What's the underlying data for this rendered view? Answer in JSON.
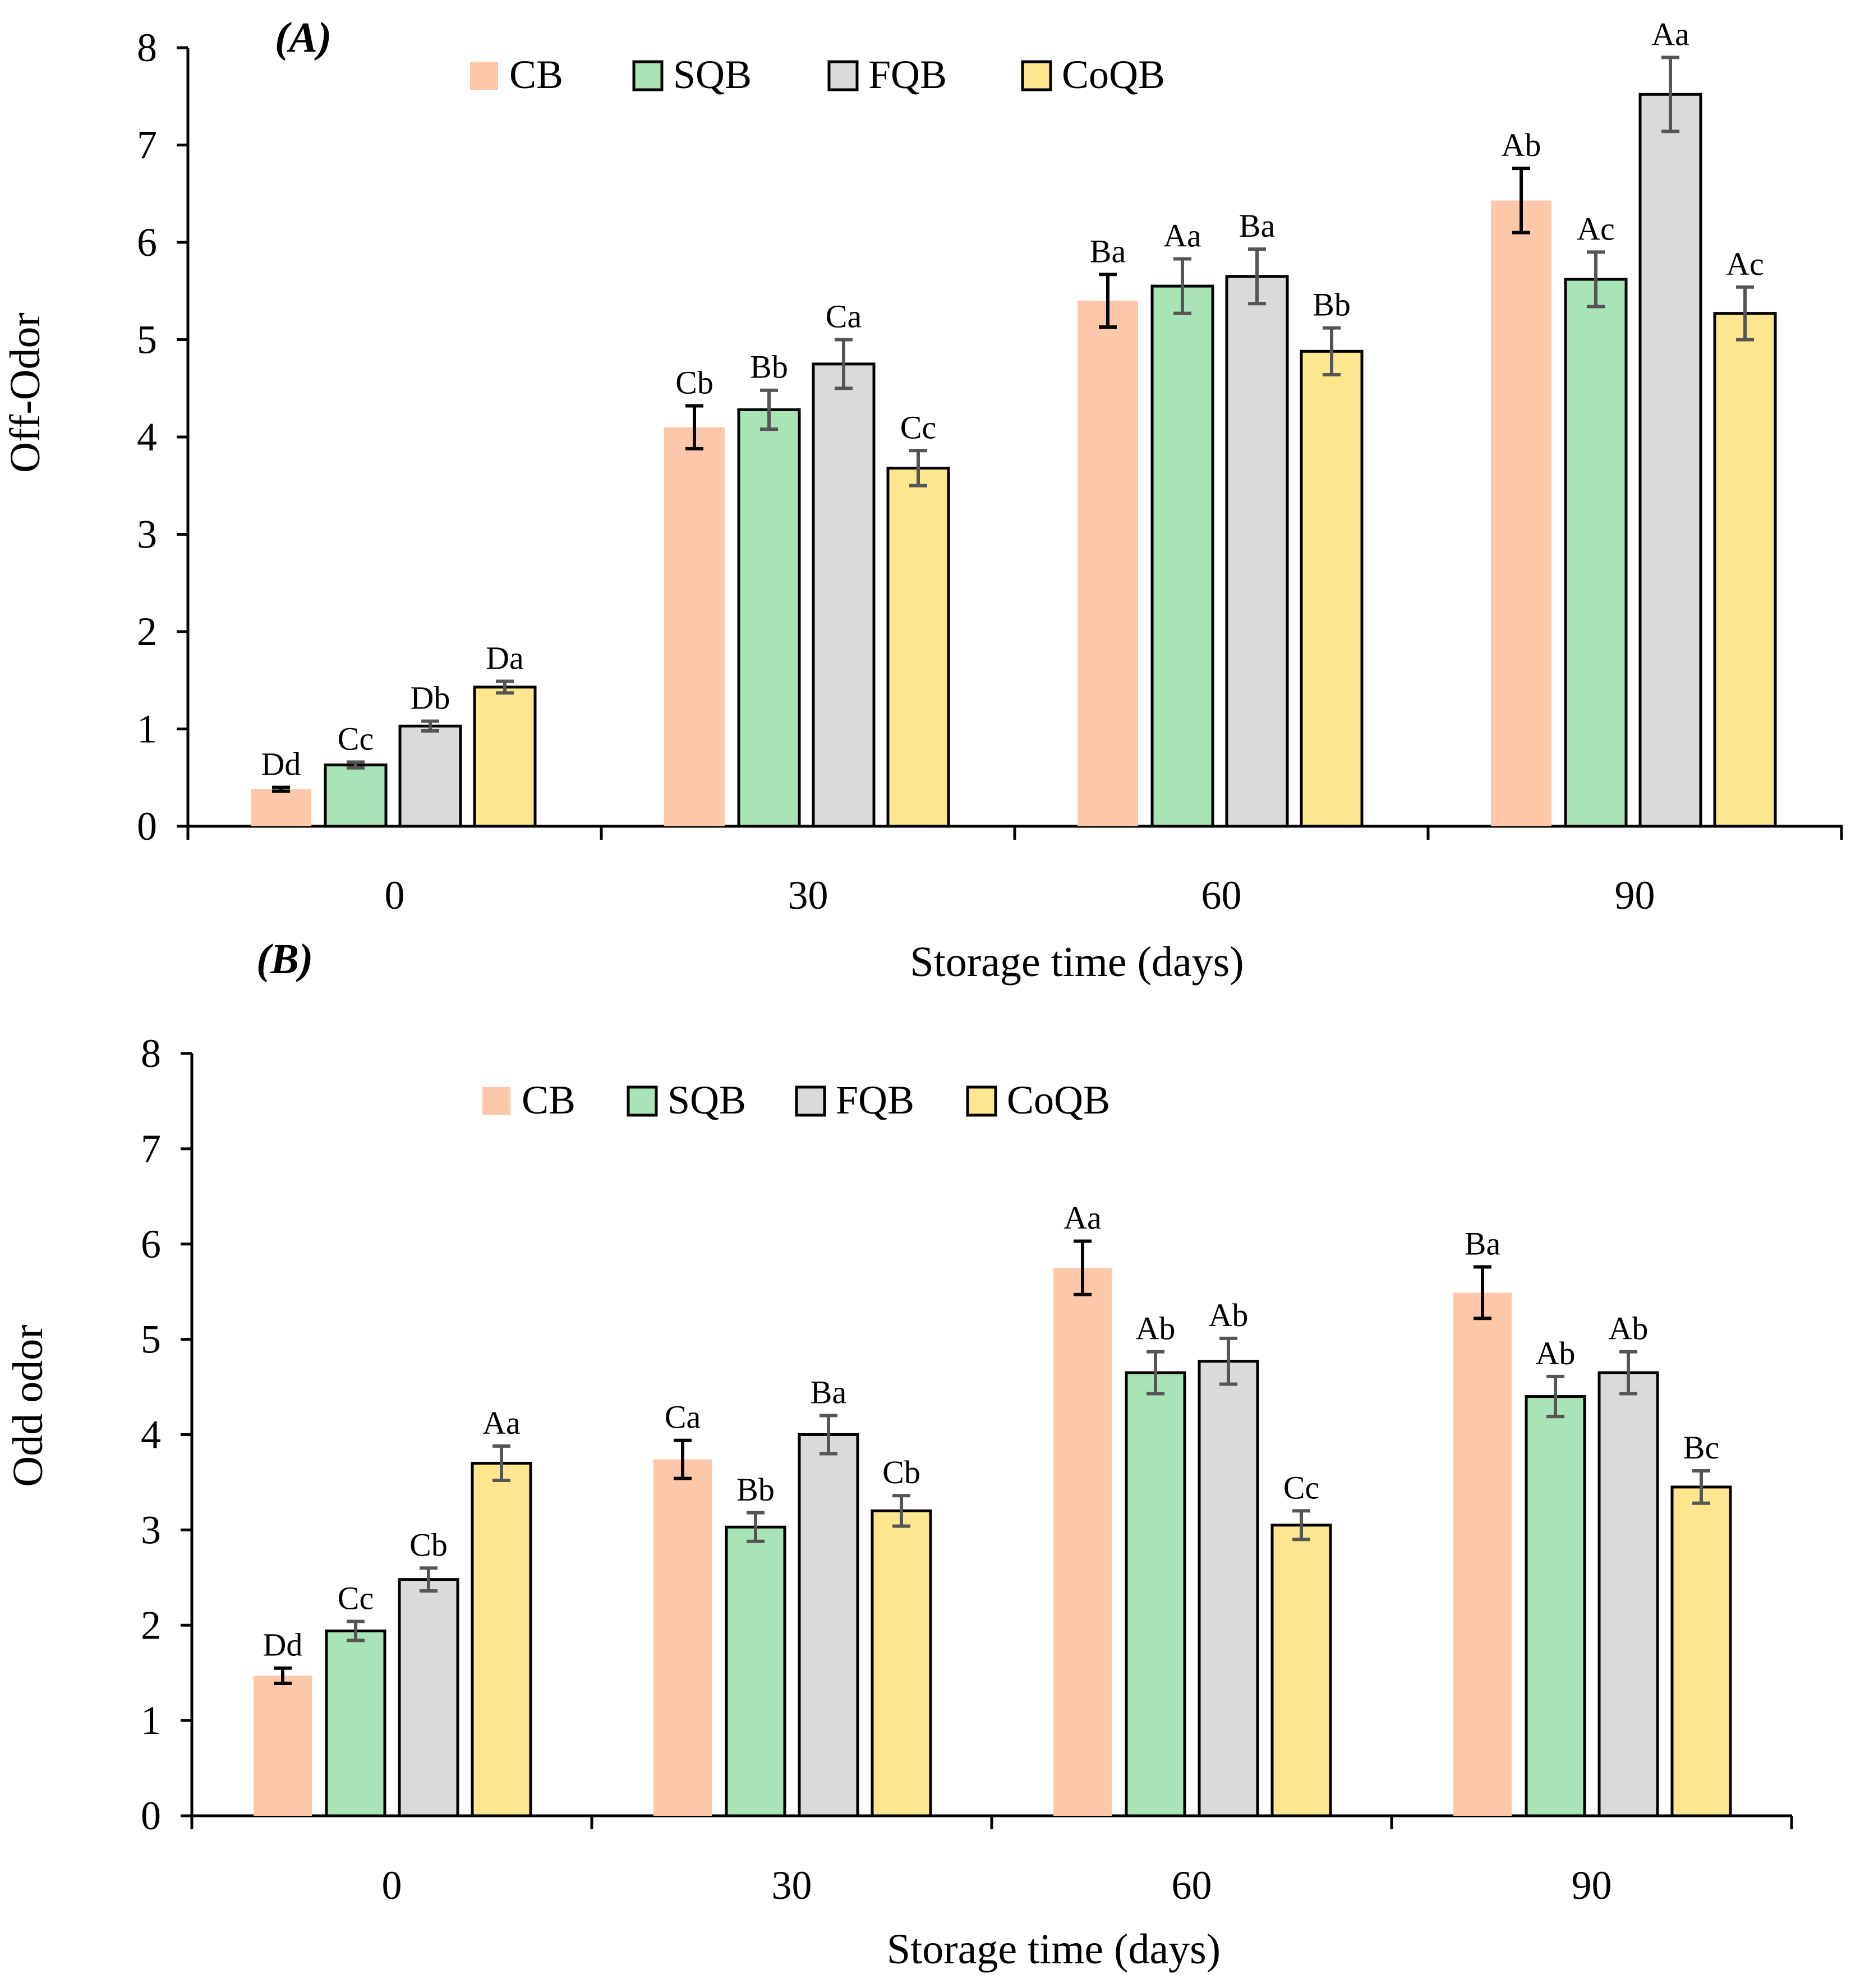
{
  "figure": {
    "panels": [
      "A",
      "B"
    ]
  },
  "colors": {
    "CB": "#fcc8a9",
    "SQB": "#a8e4b5",
    "FQB": "#dadada",
    "CoQB": "#fde78e",
    "error_default": "#555555",
    "error_dark": "#000000"
  },
  "chart_data": [
    {
      "type": "bar",
      "panel_tag": "(A)",
      "title": "",
      "xlabel": "Storage time (days)",
      "ylabel": "Off-Odor",
      "ylim": [
        0,
        8
      ],
      "yticks": [
        0,
        1,
        2,
        3,
        4,
        5,
        6,
        7,
        8
      ],
      "categories": [
        "0",
        "30",
        "60",
        "90"
      ],
      "legend": [
        "CB",
        "SQB",
        "FQB",
        "CoQB"
      ],
      "legend_position": "top-center",
      "series": [
        {
          "name": "CB",
          "values": [
            0.38,
            4.1,
            5.4,
            6.43
          ],
          "errors": [
            0.02,
            0.22,
            0.27,
            0.33
          ],
          "labels": [
            "Dd",
            "Cb",
            "Ba",
            "Ab"
          ],
          "outlined": false
        },
        {
          "name": "SQB",
          "values": [
            0.63,
            4.28,
            5.55,
            5.62
          ],
          "errors": [
            0.03,
            0.2,
            0.28,
            0.28
          ],
          "labels": [
            "Cc",
            "Bb",
            "Aa",
            "Ac"
          ],
          "outlined": true
        },
        {
          "name": "FQB",
          "values": [
            1.03,
            4.75,
            5.65,
            7.52
          ],
          "errors": [
            0.05,
            0.25,
            0.28,
            0.38
          ],
          "labels": [
            "Db",
            "Ca",
            "Ba",
            "Aa"
          ],
          "outlined": true
        },
        {
          "name": "CoQB",
          "values": [
            1.43,
            3.68,
            4.88,
            5.27
          ],
          "errors": [
            0.06,
            0.18,
            0.24,
            0.27
          ],
          "labels": [
            "Da",
            "Cc",
            "Bb",
            "Ac"
          ],
          "outlined": true
        }
      ]
    },
    {
      "type": "bar",
      "panel_tag": "(B)",
      "title": "",
      "xlabel": "Storage time (days)",
      "ylabel": "Odd odor",
      "ylim": [
        0,
        8
      ],
      "yticks": [
        0,
        1,
        2,
        3,
        4,
        5,
        6,
        7,
        8
      ],
      "categories": [
        "0",
        "30",
        "60",
        "90"
      ],
      "legend": [
        "CB",
        "SQB",
        "FQB",
        "CoQB"
      ],
      "legend_position": "top-center",
      "series": [
        {
          "name": "CB",
          "values": [
            1.47,
            3.74,
            5.75,
            5.49
          ],
          "errors": [
            0.08,
            0.2,
            0.28,
            0.27
          ],
          "labels": [
            "Dd",
            "Ca",
            "Aa",
            "Ba"
          ],
          "outlined": false
        },
        {
          "name": "SQB",
          "values": [
            1.94,
            3.03,
            4.65,
            4.4
          ],
          "errors": [
            0.1,
            0.15,
            0.22,
            0.21
          ],
          "labels": [
            "Cc",
            "Bb",
            "Ab",
            "Ab"
          ],
          "outlined": true
        },
        {
          "name": "FQB",
          "values": [
            2.48,
            4.0,
            4.77,
            4.65
          ],
          "errors": [
            0.12,
            0.2,
            0.24,
            0.22
          ],
          "labels": [
            "Cb",
            "Ba",
            "Ab",
            "Ab"
          ],
          "outlined": true
        },
        {
          "name": "CoQB",
          "values": [
            3.7,
            3.2,
            3.05,
            3.45
          ],
          "errors": [
            0.18,
            0.16,
            0.15,
            0.17
          ],
          "labels": [
            "Aa",
            "Cb",
            "Cc",
            "Bc"
          ],
          "outlined": true
        }
      ]
    }
  ]
}
